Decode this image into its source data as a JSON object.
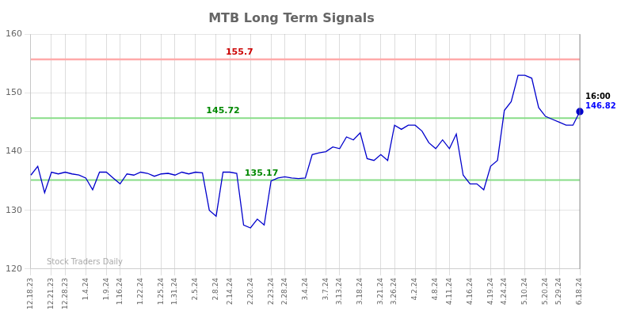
{
  "chart_data": {
    "type": "line",
    "title": "MTB Long Term Signals",
    "categories": [
      "12.18.23",
      null,
      null,
      "12.21.23",
      null,
      "12.28.23",
      null,
      null,
      "1.4.24",
      null,
      null,
      "1.9.24",
      null,
      "1.16.24",
      null,
      null,
      "1.22.24",
      null,
      null,
      "1.25.24",
      null,
      "1.31.24",
      null,
      null,
      "2.5.24",
      null,
      null,
      "2.8.24",
      null,
      "2.14.24",
      null,
      null,
      "2.20.24",
      null,
      null,
      "2.23.24",
      null,
      "2.28.24",
      null,
      null,
      "3.4.24",
      null,
      null,
      "3.7.24",
      null,
      "3.13.24",
      null,
      null,
      "3.18.24",
      null,
      null,
      "3.21.24",
      null,
      "3.26.24",
      null,
      null,
      "4.2.24",
      null,
      null,
      "4.8.24",
      null,
      "4.11.24",
      null,
      null,
      "4.16.24",
      null,
      null,
      "4.19.24",
      null,
      "4.24.24",
      null,
      null,
      "5.10.24",
      null,
      null,
      "5.20.24",
      null,
      "5.29.24",
      null,
      null,
      "6.18.24"
    ],
    "values": [
      136.0,
      137.5,
      133.0,
      136.5,
      136.2,
      136.5,
      136.2,
      136.0,
      135.5,
      133.5,
      136.5,
      136.5,
      135.5,
      134.5,
      136.2,
      136.0,
      136.5,
      136.3,
      135.8,
      136.2,
      136.3,
      136.0,
      136.5,
      136.2,
      136.5,
      136.4,
      130.0,
      129.0,
      136.5,
      136.5,
      136.3,
      127.5,
      127.0,
      128.5,
      127.5,
      135.0,
      135.5,
      135.7,
      135.5,
      135.4,
      135.5,
      139.5,
      139.8,
      140.0,
      140.8,
      140.5,
      142.5,
      142.0,
      143.2,
      138.8,
      138.5,
      139.5,
      138.5,
      144.5,
      143.8,
      144.5,
      144.5,
      143.5,
      141.5,
      140.5,
      142.0,
      140.5,
      143.0,
      136.0,
      134.5,
      134.5,
      133.5,
      137.5,
      138.5,
      147.0,
      148.5,
      153.0,
      153.0,
      152.5,
      147.5,
      146.0,
      145.5,
      145.0,
      144.5,
      144.5,
      146.82
    ],
    "color": "#0000cc",
    "ylim": [
      120,
      160
    ],
    "yticks": [
      120,
      130,
      140,
      150,
      160
    ],
    "grid": true,
    "hlines": [
      {
        "value": 155.7,
        "label": "155.7",
        "color": "#ffaaaa",
        "label_color": "#cc0000"
      },
      {
        "value": 145.72,
        "label": "145.72",
        "color": "#88dd88",
        "label_color": "#008800"
      },
      {
        "value": 135.17,
        "label": "135.17",
        "color": "#88dd88",
        "label_color": "#008800"
      }
    ],
    "last_point": {
      "label": "16:00",
      "value": 146.82
    },
    "watermark": "Stock Traders Daily"
  }
}
